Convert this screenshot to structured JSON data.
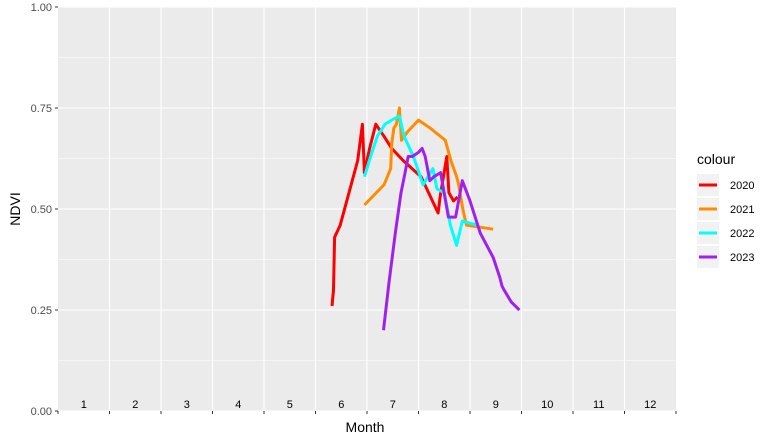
{
  "chart_data": {
    "type": "line",
    "xlabel": "Month",
    "ylabel": "NDVI",
    "ylim": [
      0,
      1
    ],
    "y_ticks": [
      0,
      0.25,
      0.5,
      0.75,
      1
    ],
    "y_tick_labels": [
      "0.00",
      "0.25",
      "0.50",
      "0.75",
      "1.00"
    ],
    "month_labels": [
      "1",
      "2",
      "3",
      "4",
      "5",
      "6",
      "7",
      "8",
      "9",
      "10",
      "11",
      "12"
    ],
    "grid": true,
    "panel_background": "#ebebeb",
    "legend": {
      "title": "colour",
      "position": "right"
    },
    "series": [
      {
        "name": "2020",
        "color": "#ff0000",
        "x": [
          5.32,
          5.35,
          5.37,
          5.48,
          5.82,
          5.91,
          5.95,
          6.05,
          6.17,
          6.33,
          6.48,
          6.7,
          7.05,
          7.38,
          7.42,
          7.55,
          7.59,
          7.68,
          7.76
        ],
        "y": [
          0.26,
          0.3,
          0.43,
          0.46,
          0.62,
          0.71,
          0.59,
          0.65,
          0.71,
          0.68,
          0.65,
          0.62,
          0.58,
          0.49,
          0.53,
          0.63,
          0.54,
          0.52,
          0.53
        ]
      },
      {
        "name": "2021",
        "color": "#ff8c00",
        "x": [
          5.95,
          6.33,
          6.46,
          6.48,
          6.52,
          6.57,
          6.63,
          6.67,
          6.78,
          7.0,
          7.23,
          7.52,
          7.63,
          7.74,
          7.78,
          7.82,
          7.86,
          7.93,
          8.45
        ],
        "y": [
          0.51,
          0.56,
          0.6,
          0.66,
          0.7,
          0.71,
          0.75,
          0.67,
          0.69,
          0.72,
          0.7,
          0.67,
          0.62,
          0.58,
          0.56,
          0.53,
          0.5,
          0.46,
          0.45
        ]
      },
      {
        "name": "2022",
        "color": "#00ffff",
        "x": [
          5.95,
          6.07,
          6.2,
          6.35,
          6.48,
          6.63,
          6.72,
          6.9,
          7.09,
          7.28,
          7.36,
          7.5,
          7.62,
          7.74,
          7.85,
          8.15
        ],
        "y": [
          0.58,
          0.63,
          0.68,
          0.71,
          0.72,
          0.73,
          0.68,
          0.63,
          0.56,
          0.6,
          0.55,
          0.54,
          0.46,
          0.41,
          0.47,
          0.46
        ]
      },
      {
        "name": "2023",
        "color": "#a020f0",
        "x": [
          6.32,
          6.43,
          6.55,
          6.66,
          6.74,
          6.8,
          6.88,
          7.0,
          7.07,
          7.13,
          7.22,
          7.3,
          7.43,
          7.58,
          7.72,
          7.85,
          8.0,
          8.2,
          8.45,
          8.58,
          8.62,
          8.66,
          8.8,
          8.96
        ],
        "y": [
          0.2,
          0.32,
          0.44,
          0.54,
          0.59,
          0.63,
          0.63,
          0.64,
          0.65,
          0.63,
          0.57,
          0.58,
          0.59,
          0.48,
          0.48,
          0.57,
          0.52,
          0.44,
          0.38,
          0.33,
          0.31,
          0.3,
          0.27,
          0.25
        ]
      }
    ]
  }
}
